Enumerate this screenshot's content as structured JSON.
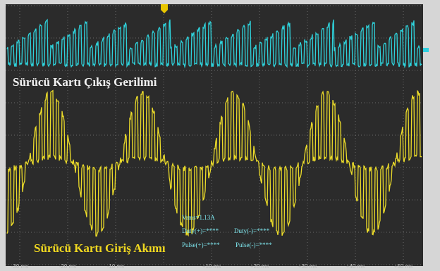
{
  "waveform_labels": {
    "output_voltage": "Sürücü Kartı Çıkış Gerilimi",
    "input_current": "Sürücü Kartı Giriş Akımı"
  },
  "measurements": {
    "vrms": "Vrms=1.13A",
    "duty_pos": "Duty(+)=****",
    "duty_neg": "Duty(-)=****",
    "pulse_pos": "Pulse(+)=****",
    "pulse_neg": "Pulse(-)=****"
  },
  "time_axis": [
    "-30 ms",
    "-20 ms",
    "-10 ms",
    "+10 ms",
    "+20 ms",
    "+30 ms",
    "+40 ms",
    "+50 ms"
  ]
}
